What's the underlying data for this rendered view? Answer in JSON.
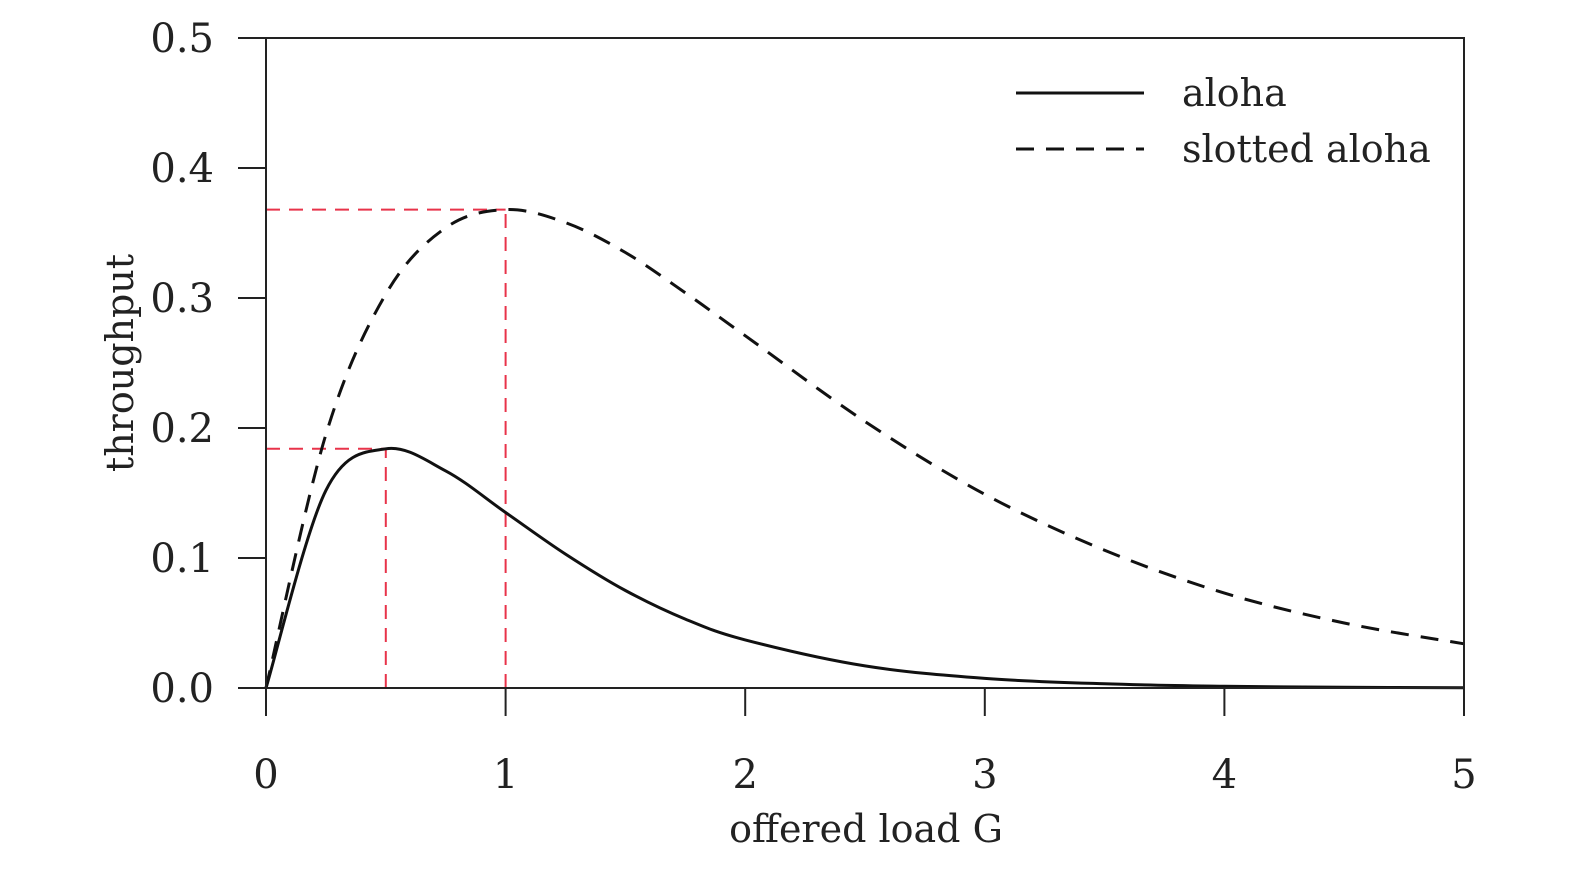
{
  "chart_data": {
    "type": "line",
    "title": "",
    "xlabel": "offered load G",
    "ylabel": "throughput",
    "xlim": [
      0,
      5
    ],
    "ylim": [
      0,
      0.5
    ],
    "x_ticks": [
      "0",
      "1",
      "2",
      "3",
      "4",
      "5"
    ],
    "y_ticks": [
      "0.0",
      "0.1",
      "0.2",
      "0.3",
      "0.4",
      "0.5"
    ],
    "grid": false,
    "legend_position": "top-right",
    "x": [
      0,
      0.25,
      0.5,
      0.75,
      1,
      1.25,
      1.5,
      1.75,
      2,
      2.5,
      3,
      3.5,
      4,
      4.5,
      5
    ],
    "series": [
      {
        "name": "aloha",
        "style": "solid",
        "color": "#111111",
        "values": [
          0,
          0.152,
          0.184,
          0.167,
          0.135,
          0.103,
          0.075,
          0.053,
          0.037,
          0.017,
          0.0074,
          0.0032,
          0.0013,
          0.0006,
          0.0002
        ]
      },
      {
        "name": "slotted aloha",
        "style": "dashed",
        "color": "#111111",
        "values": [
          0,
          0.195,
          0.303,
          0.354,
          0.368,
          0.358,
          0.335,
          0.304,
          0.271,
          0.205,
          0.149,
          0.106,
          0.073,
          0.05,
          0.034
        ]
      }
    ],
    "reference_lines": [
      {
        "x": 0.5,
        "y": 0.184,
        "color": "#e8334a",
        "style": "dashed"
      },
      {
        "x": 1,
        "y": 0.368,
        "color": "#e8334a",
        "style": "dashed"
      }
    ]
  }
}
